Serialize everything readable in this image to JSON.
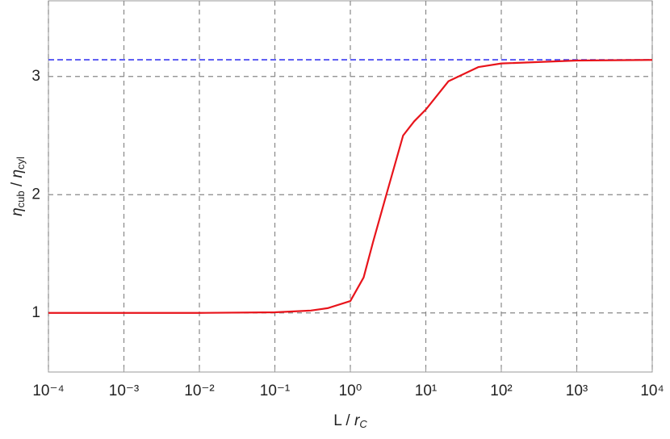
{
  "chart_data": {
    "type": "line",
    "xlabel": [
      "L / ",
      "r",
      "C"
    ],
    "ylabel": [
      "η",
      "cub",
      " / ",
      "η",
      "cyl"
    ],
    "xscale": "log",
    "xlim": [
      0.0001,
      10000
    ],
    "ylim": [
      0.5,
      3.64
    ],
    "xticks": [
      {
        "value": 0.0001,
        "label": "10⁻⁴"
      },
      {
        "value": 0.001,
        "label": "10⁻³"
      },
      {
        "value": 0.01,
        "label": "10⁻²"
      },
      {
        "value": 0.1,
        "label": "10⁻¹"
      },
      {
        "value": 1,
        "label": "10⁰"
      },
      {
        "value": 10,
        "label": "10¹"
      },
      {
        "value": 100,
        "label": "10²"
      },
      {
        "value": 1000,
        "label": "10³"
      },
      {
        "value": 10000,
        "label": "10⁴"
      }
    ],
    "yticks": [
      1,
      2,
      3
    ],
    "grid": true,
    "hlines": [
      {
        "value": 3.14159,
        "color": "#3a3af0"
      }
    ],
    "series": [
      {
        "color": "#e8141b",
        "x": [
          0.0001,
          0.001,
          0.01,
          0.1,
          0.3,
          0.5,
          1,
          1.5,
          2,
          3,
          5,
          7,
          10,
          20,
          50,
          100,
          1000,
          10000
        ],
        "values": [
          1.0,
          1.0,
          1.0,
          1.005,
          1.02,
          1.04,
          1.1,
          1.3,
          1.6,
          2.0,
          2.5,
          2.62,
          2.72,
          2.96,
          3.08,
          3.11,
          3.135,
          3.14
        ]
      }
    ]
  }
}
